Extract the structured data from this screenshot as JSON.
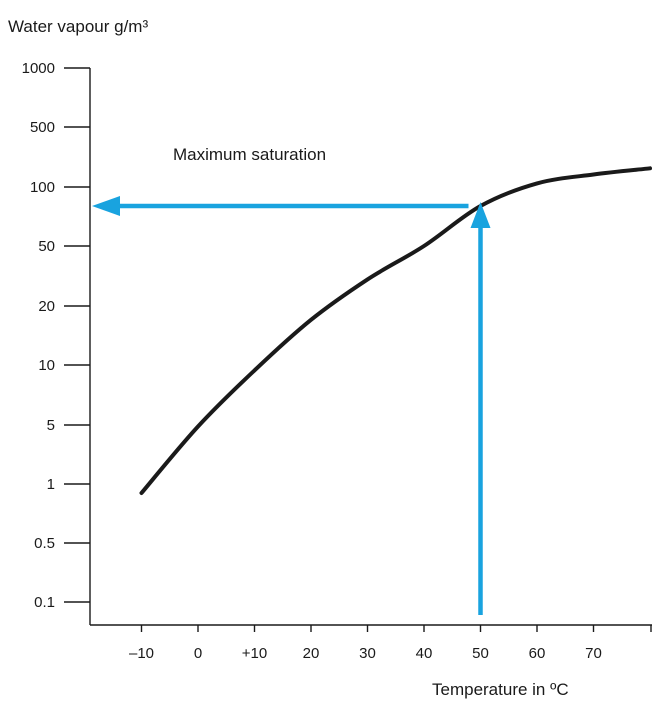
{
  "chart_data": {
    "type": "line",
    "title": "",
    "ylabel": "Water vapour g/m³",
    "xlabel": "Temperature in ºC",
    "y_scale": "custom-log",
    "y_ticks": [
      "1000",
      "500",
      "100",
      "50",
      "20",
      "10",
      "5",
      "1",
      "0.5",
      "0.1"
    ],
    "x_ticks": [
      "–10",
      "0",
      "+10",
      "20",
      "30",
      "40",
      "50",
      "60",
      "70"
    ],
    "x_tick_values": [
      -10,
      0,
      10,
      20,
      30,
      40,
      50,
      60,
      70
    ],
    "xlim": [
      -10,
      80
    ],
    "ylim": [
      0.1,
      1000
    ],
    "series": [
      {
        "name": "Maximum saturation",
        "x": [
          -10,
          0,
          10,
          20,
          30,
          40,
          50,
          60,
          70,
          80
        ],
        "y": [
          0.9,
          4.8,
          9.4,
          17,
          30,
          50,
          80,
          110,
          140,
          165
        ]
      }
    ],
    "annotations": [
      {
        "text": "Maximum saturation"
      }
    ],
    "reading": {
      "x": 50,
      "y": 80
    },
    "colors": {
      "curve": "#1a1a1a",
      "arrow": "#19a3df",
      "axis": "#1a1a1a"
    }
  }
}
